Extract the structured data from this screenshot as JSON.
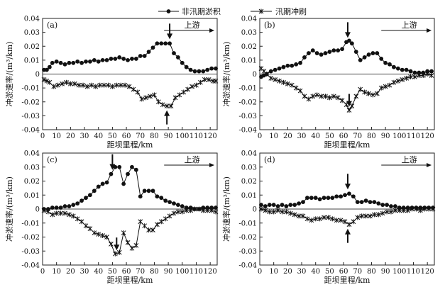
{
  "legend": {
    "items": [
      {
        "label": "非汛期淤积",
        "marker": "dot"
      },
      {
        "label": "汛期冲刷",
        "marker": "star"
      }
    ]
  },
  "colors": {
    "ink": "#111111",
    "axis": "#222222",
    "zero_line": "#444444"
  },
  "chart_data": [
    {
      "type": "line",
      "panel_label": "(a)",
      "xlabel": "距坝里程/km",
      "ylabel": "冲淤速率/(m³/km)",
      "xlim": [
        0,
        125
      ],
      "ylim": [
        -0.04,
        0.04
      ],
      "xticks": [
        0,
        10,
        20,
        30,
        40,
        50,
        60,
        70,
        80,
        90,
        100,
        110,
        120
      ],
      "yticks": [
        -0.04,
        -0.03,
        -0.02,
        -0.01,
        0,
        0.01,
        0.02,
        0.03,
        0.04
      ],
      "annotation": "上游",
      "series": [
        {
          "name": "非汛期淤积",
          "marker": "dot",
          "x": [
            1,
            3,
            5,
            7,
            10,
            13,
            16,
            19,
            22,
            25,
            28,
            31,
            34,
            37,
            40,
            43,
            46,
            49,
            52,
            55,
            58,
            61,
            64,
            67,
            70,
            73,
            76,
            79,
            82,
            85,
            88,
            91,
            94,
            97,
            100,
            103,
            106,
            109,
            112,
            115,
            118,
            121,
            124
          ],
          "y": [
            0.003,
            0.003,
            0.005,
            0.008,
            0.009,
            0.008,
            0.007,
            0.008,
            0.008,
            0.009,
            0.008,
            0.009,
            0.009,
            0.01,
            0.009,
            0.01,
            0.01,
            0.011,
            0.011,
            0.012,
            0.011,
            0.01,
            0.011,
            0.011,
            0.013,
            0.013,
            0.016,
            0.019,
            0.022,
            0.022,
            0.022,
            0.022,
            0.015,
            0.012,
            0.008,
            0.005,
            0.003,
            0.002,
            0.002,
            0.002,
            0.003,
            0.004,
            0.004
          ]
        },
        {
          "name": "汛期冲刷",
          "marker": "star",
          "x": [
            1,
            3,
            5,
            8,
            11,
            14,
            17,
            20,
            23,
            26,
            29,
            32,
            35,
            38,
            41,
            44,
            47,
            50,
            53,
            56,
            59,
            62,
            65,
            68,
            71,
            74,
            77,
            80,
            83,
            86,
            89,
            92,
            95,
            98,
            101,
            104,
            107,
            110,
            113,
            116,
            119,
            122,
            124
          ],
          "y": [
            -0.004,
            -0.005,
            -0.006,
            -0.009,
            -0.008,
            -0.007,
            -0.006,
            -0.007,
            -0.007,
            -0.008,
            -0.008,
            -0.009,
            -0.008,
            -0.009,
            -0.008,
            -0.008,
            -0.008,
            -0.009,
            -0.008,
            -0.008,
            -0.008,
            -0.009,
            -0.011,
            -0.013,
            -0.018,
            -0.017,
            -0.016,
            -0.015,
            -0.02,
            -0.022,
            -0.023,
            -0.023,
            -0.017,
            -0.015,
            -0.013,
            -0.011,
            -0.009,
            -0.008,
            -0.006,
            -0.004,
            -0.004,
            -0.005,
            -0.005
          ]
        }
      ],
      "arrows": [
        {
          "x": 91,
          "direction": "down"
        },
        {
          "x": 89,
          "direction": "up"
        }
      ]
    },
    {
      "type": "line",
      "panel_label": "(b)",
      "xlabel": "距坝里程/km",
      "ylabel": "冲淤速率/(m³/km)",
      "xlim": [
        0,
        125
      ],
      "ylim": [
        -0.04,
        0.04
      ],
      "xticks": [
        0,
        10,
        20,
        30,
        40,
        50,
        60,
        70,
        80,
        90,
        100,
        110,
        120
      ],
      "yticks": [
        -0.04,
        -0.03,
        -0.02,
        -0.01,
        0,
        0.01,
        0.02,
        0.03,
        0.04
      ],
      "annotation": "上游",
      "series": [
        {
          "name": "非汛期淤积",
          "marker": "dot",
          "x": [
            1,
            3,
            5,
            8,
            11,
            14,
            17,
            20,
            23,
            26,
            29,
            32,
            35,
            38,
            41,
            44,
            47,
            50,
            53,
            56,
            59,
            62,
            64,
            66,
            69,
            72,
            75,
            78,
            81,
            84,
            87,
            90,
            93,
            96,
            99,
            102,
            105,
            108,
            111,
            114,
            117,
            120,
            123
          ],
          "y": [
            -0.002,
            -0.001,
            0.0,
            0.002,
            0.003,
            0.004,
            0.005,
            0.006,
            0.006,
            0.007,
            0.008,
            0.012,
            0.015,
            0.017,
            0.015,
            0.014,
            0.015,
            0.016,
            0.017,
            0.017,
            0.018,
            0.023,
            0.024,
            0.022,
            0.016,
            0.01,
            0.012,
            0.014,
            0.015,
            0.015,
            0.011,
            0.008,
            0.007,
            0.005,
            0.004,
            0.003,
            0.003,
            0.002,
            0.001,
            0.001,
            0.001,
            0.002,
            0.002
          ]
        },
        {
          "name": "汛期冲刷",
          "marker": "star",
          "x": [
            1,
            3,
            5,
            8,
            11,
            14,
            17,
            20,
            23,
            26,
            29,
            32,
            35,
            38,
            41,
            44,
            47,
            50,
            53,
            56,
            59,
            62,
            64,
            66,
            69,
            72,
            75,
            78,
            81,
            84,
            87,
            90,
            93,
            96,
            99,
            102,
            105,
            108,
            111,
            114,
            117,
            120,
            123
          ],
          "y": [
            0.004,
            0.002,
            0.0,
            -0.003,
            -0.004,
            -0.005,
            -0.006,
            -0.007,
            -0.008,
            -0.01,
            -0.012,
            -0.016,
            -0.018,
            -0.016,
            -0.015,
            -0.016,
            -0.016,
            -0.017,
            -0.016,
            -0.017,
            -0.019,
            -0.022,
            -0.026,
            -0.023,
            -0.016,
            -0.011,
            -0.013,
            -0.014,
            -0.015,
            -0.014,
            -0.01,
            -0.009,
            -0.008,
            -0.006,
            -0.005,
            -0.004,
            -0.003,
            -0.002,
            -0.002,
            -0.001,
            -0.001,
            0.0,
            -0.001
          ]
        }
      ],
      "arrows": [
        {
          "x": 63,
          "direction": "down"
        },
        {
          "x": 64,
          "direction": "down"
        }
      ]
    },
    {
      "type": "line",
      "panel_label": "(c)",
      "xlabel": "距坝里程/km",
      "ylabel": "冲淤速率/(m³/km)",
      "xlim": [
        0,
        125
      ],
      "ylim": [
        -0.04,
        0.04
      ],
      "xticks": [
        0,
        10,
        20,
        30,
        40,
        50,
        60,
        70,
        80,
        90,
        100,
        110,
        120
      ],
      "yticks": [
        -0.04,
        -0.03,
        -0.02,
        -0.01,
        0,
        0.01,
        0.02,
        0.03,
        0.04
      ],
      "annotation": "上游",
      "series": [
        {
          "name": "非汛期淤积",
          "marker": "dot",
          "x": [
            1,
            4,
            7,
            10,
            13,
            16,
            19,
            22,
            25,
            28,
            31,
            34,
            37,
            40,
            43,
            46,
            49,
            52,
            55,
            58,
            61,
            64,
            67,
            70,
            73,
            76,
            79,
            82,
            85,
            88,
            91,
            94,
            97,
            100,
            103,
            106,
            109,
            112,
            115,
            118,
            121,
            124
          ],
          "y": [
            0.0,
            0.0,
            0.001,
            0.001,
            0.001,
            0.002,
            0.002,
            0.003,
            0.004,
            0.006,
            0.008,
            0.01,
            0.013,
            0.016,
            0.018,
            0.019,
            0.025,
            0.03,
            0.03,
            0.018,
            0.025,
            0.03,
            0.028,
            0.009,
            0.013,
            0.013,
            0.013,
            0.009,
            0.008,
            0.006,
            0.005,
            0.004,
            0.003,
            0.002,
            0.001,
            0.001,
            0.0,
            0.0,
            0.001,
            0.001,
            0.001,
            0.001
          ]
        },
        {
          "name": "汛期冲刷",
          "marker": "star",
          "x": [
            1,
            4,
            7,
            10,
            13,
            16,
            19,
            22,
            25,
            28,
            31,
            34,
            37,
            40,
            43,
            46,
            49,
            52,
            55,
            58,
            61,
            64,
            67,
            70,
            73,
            76,
            79,
            82,
            85,
            88,
            91,
            94,
            97,
            100,
            103,
            106,
            109,
            112,
            115,
            118,
            121,
            124
          ],
          "y": [
            -0.001,
            -0.002,
            -0.004,
            -0.003,
            -0.003,
            -0.003,
            -0.004,
            -0.005,
            -0.007,
            -0.009,
            -0.012,
            -0.014,
            -0.017,
            -0.018,
            -0.019,
            -0.02,
            -0.025,
            -0.032,
            -0.031,
            -0.017,
            -0.024,
            -0.028,
            -0.026,
            -0.009,
            -0.012,
            -0.015,
            -0.015,
            -0.011,
            -0.009,
            -0.007,
            -0.005,
            -0.003,
            -0.002,
            -0.002,
            -0.001,
            -0.001,
            0.0,
            0.0,
            -0.001,
            -0.001,
            -0.001,
            -0.002
          ]
        }
      ],
      "arrows": [
        {
          "x": 50,
          "direction": "down"
        },
        {
          "x": 53,
          "direction": "down"
        }
      ]
    },
    {
      "type": "line",
      "panel_label": "(d)",
      "xlabel": "距坝里程/km",
      "ylabel": "冲淤速率/(m³/km)",
      "xlim": [
        0,
        125
      ],
      "ylim": [
        -0.04,
        0.04
      ],
      "xticks": [
        0,
        10,
        20,
        30,
        40,
        50,
        60,
        70,
        80,
        90,
        100,
        110,
        120
      ],
      "yticks": [
        -0.04,
        -0.03,
        -0.02,
        -0.01,
        0,
        0.01,
        0.02,
        0.03,
        0.04
      ],
      "annotation": "上游",
      "series": [
        {
          "name": "非汛期淤积",
          "marker": "dot",
          "x": [
            1,
            4,
            7,
            10,
            13,
            16,
            19,
            22,
            25,
            28,
            31,
            34,
            37,
            40,
            43,
            46,
            49,
            52,
            55,
            58,
            61,
            64,
            67,
            70,
            73,
            76,
            79,
            82,
            85,
            88,
            91,
            94,
            97,
            100,
            103,
            106,
            109,
            112,
            115,
            118,
            121,
            124
          ],
          "y": [
            0.003,
            0.002,
            0.003,
            0.003,
            0.002,
            0.003,
            0.002,
            0.003,
            0.003,
            0.004,
            0.005,
            0.008,
            0.008,
            0.008,
            0.007,
            0.008,
            0.008,
            0.008,
            0.009,
            0.009,
            0.01,
            0.011,
            0.009,
            0.005,
            0.005,
            0.006,
            0.005,
            0.005,
            0.004,
            0.003,
            0.003,
            0.002,
            0.002,
            0.001,
            0.001,
            0.001,
            0.001,
            0.001,
            0.001,
            0.001,
            0.001,
            0.001
          ]
        },
        {
          "name": "汛期冲刷",
          "marker": "star",
          "x": [
            1,
            4,
            7,
            10,
            13,
            16,
            19,
            22,
            25,
            28,
            31,
            34,
            37,
            40,
            43,
            46,
            49,
            52,
            55,
            58,
            61,
            64,
            67,
            70,
            73,
            76,
            79,
            82,
            85,
            88,
            91,
            94,
            97,
            100,
            103,
            106,
            109,
            112,
            115,
            118,
            121,
            124
          ],
          "y": [
            0.0,
            -0.001,
            -0.002,
            -0.002,
            -0.001,
            -0.002,
            -0.002,
            -0.003,
            -0.004,
            -0.005,
            -0.005,
            -0.007,
            -0.008,
            -0.007,
            -0.007,
            -0.006,
            -0.006,
            -0.007,
            -0.008,
            -0.008,
            -0.009,
            -0.011,
            -0.009,
            -0.006,
            -0.005,
            -0.005,
            -0.005,
            -0.004,
            -0.004,
            -0.003,
            -0.002,
            -0.002,
            -0.001,
            -0.001,
            -0.001,
            -0.001,
            0.0,
            0.0,
            -0.001,
            0.0,
            0.0,
            0.0
          ]
        }
      ],
      "arrows": [
        {
          "x": 63,
          "direction": "down"
        },
        {
          "x": 63,
          "direction": "up"
        }
      ]
    }
  ]
}
